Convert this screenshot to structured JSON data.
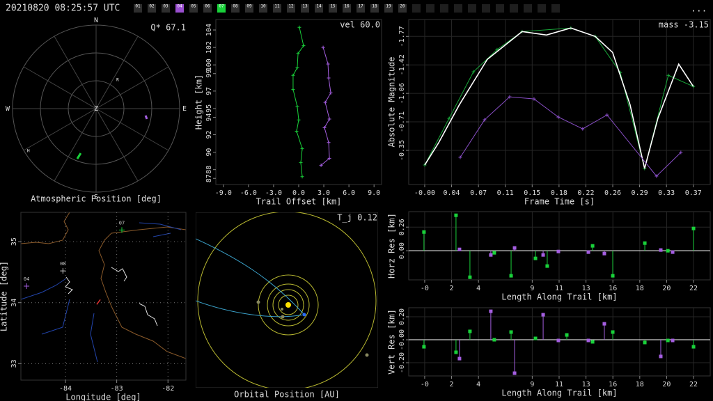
{
  "header": {
    "timestamp": "20210820 08:25:57 UTC",
    "menu": "...",
    "stations": [
      {
        "label": "01",
        "color": "#2e2e2e"
      },
      {
        "label": "02",
        "color": "#2e2e2e"
      },
      {
        "label": "03",
        "color": "#2e2e2e"
      },
      {
        "label": "04",
        "color": "#9a4fd0"
      },
      {
        "label": "05",
        "color": "#2e2e2e"
      },
      {
        "label": "06",
        "color": "#2e2e2e"
      },
      {
        "label": "07",
        "color": "#19d13a"
      },
      {
        "label": "08",
        "color": "#2e2e2e"
      },
      {
        "label": "09",
        "color": "#2e2e2e"
      },
      {
        "label": "10",
        "color": "#2e2e2e"
      },
      {
        "label": "11",
        "color": "#2e2e2e"
      },
      {
        "label": "12",
        "color": "#2e2e2e"
      },
      {
        "label": "13",
        "color": "#2e2e2e"
      },
      {
        "label": "14",
        "color": "#2e2e2e"
      },
      {
        "label": "15",
        "color": "#2e2e2e"
      },
      {
        "label": "16",
        "color": "#2e2e2e"
      },
      {
        "label": "17",
        "color": "#2e2e2e"
      },
      {
        "label": "18",
        "color": "#2e2e2e"
      },
      {
        "label": "19",
        "color": "#2e2e2e"
      },
      {
        "label": "20",
        "color": "#2e2e2e"
      }
    ]
  },
  "chart_data": [
    {
      "type": "polar",
      "title": "Atmospheric Position [deg]",
      "annotation": "Q* 67.1",
      "directions": [
        "N",
        "E",
        "S",
        "W"
      ],
      "rlim": [
        0,
        90
      ],
      "stations": [
        {
          "label": "R",
          "az": 37,
          "zenith": 38.5
        },
        {
          "label": "H",
          "az": 238,
          "zenith": 86
        }
      ],
      "series": [
        {
          "color": "#19d13a",
          "az": [
            200.6,
            199
          ],
          "zenith": [
            57.7,
            50.8
          ]
        },
        {
          "color": "#a45ee0",
          "az": [
            98,
            101.6
          ],
          "zenith": [
            53.8,
            55.9
          ]
        }
      ]
    },
    {
      "type": "line",
      "annotation": "vel 60.0",
      "xlabel": "Trail Offset [km]",
      "ylabel": "Height [km]",
      "xlim": [
        -9.9,
        9.9
      ],
      "ylim": [
        86.3,
        105.2
      ],
      "grid": false,
      "xticks": [
        {
          "value": -9,
          "label": "-9.0"
        },
        {
          "value": -6,
          "label": "-6.0"
        },
        {
          "value": -3,
          "label": "-3.0"
        },
        {
          "value": 0,
          "label": "0.0"
        },
        {
          "value": 3,
          "label": "3.0"
        },
        {
          "value": 6,
          "label": "6.0"
        },
        {
          "value": 9,
          "label": "9.0"
        }
      ],
      "yticks": [
        87,
        88,
        90,
        92,
        94,
        95,
        97,
        99,
        100,
        102,
        104
      ],
      "series": [
        {
          "color": "#19d13a",
          "marker": "+",
          "x": [
            0.08,
            0.58,
            -0.08,
            -0.17,
            -0.67,
            -0.67,
            -0.17,
            0.0,
            -0.25,
            0.42,
            0.25,
            0.42
          ],
          "values": [
            104.3,
            102.2,
            101.3,
            99.7,
            98.8,
            97.2,
            95.2,
            93.7,
            92.4,
            90.4,
            88.8,
            87.2
          ]
        },
        {
          "color": "#a45ee0",
          "marker": "+",
          "x": [
            2.92,
            3.5,
            3.58,
            3.83,
            3.17,
            3.67,
            3.08,
            3.58,
            3.67,
            2.67
          ],
          "values": [
            102.0,
            100.1,
            98.5,
            96.8,
            95.7,
            93.8,
            92.8,
            91.1,
            89.3,
            88.5
          ]
        }
      ]
    },
    {
      "type": "line",
      "annotation": "mass -3.15",
      "xlabel": "Frame Time [s]",
      "ylabel": "Absolute Magnitude",
      "xlim": [
        -0.0218,
        0.389
      ],
      "ylim": [
        0.07,
        -1.98
      ],
      "grid": "solid",
      "xticks": [
        {
          "value": 0,
          "label": "-0.00"
        },
        {
          "value": 0.0366,
          "label": "0.04"
        },
        {
          "value": 0.0732,
          "label": "0.07"
        },
        {
          "value": 0.1098,
          "label": "0.11"
        },
        {
          "value": 0.1464,
          "label": "0.15"
        },
        {
          "value": 0.183,
          "label": "0.18"
        },
        {
          "value": 0.2196,
          "label": "0.22"
        },
        {
          "value": 0.2562,
          "label": "0.26"
        },
        {
          "value": 0.2928,
          "label": "0.29"
        },
        {
          "value": 0.3294,
          "label": "0.33"
        },
        {
          "value": 0.366,
          "label": "0.37"
        }
      ],
      "yticks": [
        {
          "value": -1.77,
          "label": "-1.77"
        },
        {
          "value": -1.416,
          "label": "-1.42"
        },
        {
          "value": -1.062,
          "label": "-1.06"
        },
        {
          "value": -0.708,
          "label": "-0.71"
        },
        {
          "value": -0.354,
          "label": "-0.35"
        }
      ],
      "series": [
        {
          "color": "#19a83a",
          "marker": "+",
          "x": [
            0,
            0.0332,
            0.0664,
            0.0986,
            0.1327,
            0.1991,
            0.2323,
            0.2665,
            0.2996,
            0.3319,
            0.366
          ],
          "values": [
            -0.172,
            -0.751,
            -1.33,
            -1.606,
            -1.83,
            -1.874,
            -1.77,
            -1.321,
            -0.129,
            -1.286,
            -1.148
          ]
        },
        {
          "color": "#ffffff",
          "x": [
            0,
            0.019,
            0.0474,
            0.0853,
            0.1327,
            0.1659,
            0.1991,
            0.2323,
            0.256,
            0.2797,
            0.2996,
            0.3177,
            0.3461,
            0.366
          ],
          "values": [
            -0.172,
            -0.449,
            -0.924,
            -1.485,
            -1.83,
            -1.787,
            -1.874,
            -1.77,
            -1.571,
            -0.924,
            -0.129,
            -0.751,
            -1.425,
            -1.148
          ]
        },
        {
          "color": "#8a4fc8",
          "marker": "+",
          "x": [
            0.0484,
            0.0816,
            0.1157,
            0.1489,
            0.182,
            0.2152,
            0.2484,
            0.3158,
            0.349
          ],
          "values": [
            -0.267,
            -0.734,
            -1.019,
            -0.993,
            -0.768,
            -0.621,
            -0.794,
            -0.034,
            -0.328
          ]
        }
      ]
    },
    {
      "type": "map",
      "xlabel": "Longitude [deg]",
      "ylabel": "Latitude [deg]",
      "xlim": [
        -84.87,
        -81.65
      ],
      "ylim": [
        32.73,
        35.48
      ],
      "grid": "dotted",
      "xticks": [
        -84,
        -83,
        -82
      ],
      "yticks": [
        33,
        34,
        35
      ],
      "stations": [
        {
          "label": "07",
          "color": "#19d13a",
          "lon": -82.9,
          "lat": 35.19
        },
        {
          "label": "08",
          "color": "#cccccc",
          "lon": -84.05,
          "lat": 34.52
        },
        {
          "label": "04",
          "color": "#a45ee0",
          "lon": -84.76,
          "lat": 34.27
        }
      ],
      "track": {
        "color": "#e03030",
        "lon": [
          -83.39,
          -83.32
        ],
        "lat": [
          33.97,
          34.05
        ]
      }
    },
    {
      "type": "orbit",
      "title": "Orbital Position [AU]",
      "annotation": "T_j 0.12"
    },
    {
      "type": "stem",
      "xlabel": "Length Along Trail [km]",
      "ylabel": "Horz Res [km]",
      "xlim": [
        -1.33,
        23.79
      ],
      "ylim": [
        -0.32,
        0.43
      ],
      "grid": "solid",
      "xticks": [
        {
          "value": 0,
          "label": "-0"
        },
        {
          "value": 2.24,
          "label": "2"
        },
        {
          "value": 4.48,
          "label": "4"
        },
        {
          "value": 8.96,
          "label": "9"
        },
        {
          "value": 11.2,
          "label": "11"
        },
        {
          "value": 13.44,
          "label": "13"
        },
        {
          "value": 15.68,
          "label": "16"
        },
        {
          "value": 17.92,
          "label": "18"
        },
        {
          "value": 20.16,
          "label": "20"
        },
        {
          "value": 22.4,
          "label": "22"
        }
      ],
      "yticks": [
        {
          "value": 0,
          "label": "0.00"
        },
        0.26
      ],
      "series": [
        {
          "color": "#19d13a",
          "x": [
            -0.06,
            2.61,
            3.77,
            5.8,
            7.2,
            9.23,
            10.21,
            13.99,
            15.67,
            18.34,
            20.26,
            22.4
          ],
          "values": [
            0.206,
            0.39,
            -0.291,
            -0.023,
            -0.275,
            -0.084,
            -0.168,
            0.054,
            -0.275,
            0.084,
            0.0,
            0.245
          ]
        },
        {
          "color": "#a45ee0",
          "x": [
            2.9,
            5.51,
            7.49,
            9.87,
            11.14,
            13.64,
            14.97,
            19.67,
            20.66
          ],
          "values": [
            0.015,
            -0.046,
            0.031,
            -0.046,
            -0.008,
            -0.015,
            -0.031,
            0.008,
            -0.015
          ]
        }
      ]
    },
    {
      "type": "stem",
      "xlabel": "Length Along Trail [km]",
      "ylabel": "Vert Res [km]",
      "xlim": [
        -1.33,
        23.79
      ],
      "ylim": [
        -0.315,
        0.279
      ],
      "grid": "solid",
      "xticks": [
        {
          "value": 0,
          "label": "-0"
        },
        {
          "value": 2.24,
          "label": "2"
        },
        {
          "value": 4.48,
          "label": "4"
        },
        {
          "value": 8.96,
          "label": "9"
        },
        {
          "value": 11.2,
          "label": "11"
        },
        {
          "value": 13.44,
          "label": "13"
        },
        {
          "value": 15.68,
          "label": "16"
        },
        {
          "value": 17.92,
          "label": "18"
        },
        {
          "value": 20.16,
          "label": "20"
        },
        {
          "value": 22.4,
          "label": "22"
        }
      ],
      "yticks": [
        {
          "value": -0.2,
          "label": "-0.20"
        },
        {
          "value": 0,
          "label": "-0.00"
        },
        {
          "value": 0.2,
          "label": "0.20"
        }
      ],
      "series": [
        {
          "color": "#19d13a",
          "x": [
            -0.06,
            2.61,
            3.77,
            5.8,
            7.2,
            9.23,
            11.84,
            13.99,
            15.67,
            18.34,
            20.26,
            22.4
          ],
          "values": [
            -0.061,
            -0.109,
            0.073,
            0.0,
            0.067,
            0.012,
            0.042,
            -0.018,
            0.067,
            -0.024,
            -0.006,
            -0.061
          ]
        },
        {
          "color": "#a45ee0",
          "x": [
            2.9,
            5.51,
            7.49,
            9.87,
            11.14,
            13.64,
            14.97,
            19.67,
            20.66
          ],
          "values": [
            -0.164,
            0.248,
            -0.291,
            0.218,
            -0.006,
            -0.006,
            0.139,
            -0.145,
            -0.006
          ]
        }
      ]
    }
  ]
}
